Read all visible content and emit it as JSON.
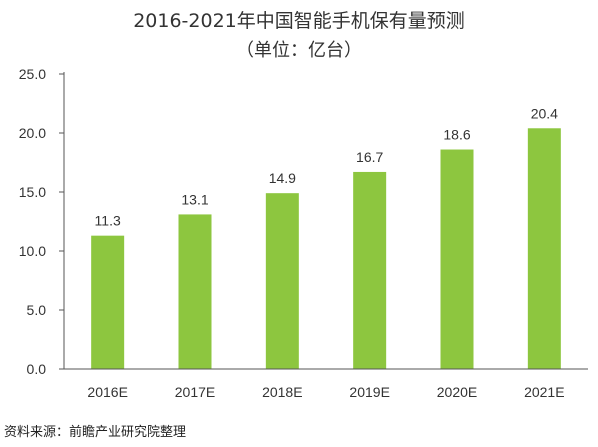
{
  "header": {
    "title": "2016-2021年中国智能手机保有量预测",
    "subtitle": "（单位：亿台）"
  },
  "source": "资料来源：前瞻产业研究院整理",
  "colors": {
    "bar": "#8dc63f",
    "axis": "#555555"
  },
  "chart_data": {
    "type": "bar",
    "title": "2016-2021年中国智能手机保有量预测",
    "subtitle": "（单位：亿台）",
    "categories": [
      "2016E",
      "2017E",
      "2018E",
      "2019E",
      "2020E",
      "2021E"
    ],
    "values": [
      11.3,
      13.1,
      14.9,
      16.7,
      18.6,
      20.4
    ],
    "data_labels": [
      "11.3",
      "13.1",
      "14.9",
      "16.7",
      "18.6",
      "20.4"
    ],
    "yticks": [
      "0.0",
      "5.0",
      "10.0",
      "15.0",
      "20.0",
      "25.0"
    ],
    "ylim": [
      0,
      25
    ],
    "grid": false,
    "legend": "none"
  }
}
